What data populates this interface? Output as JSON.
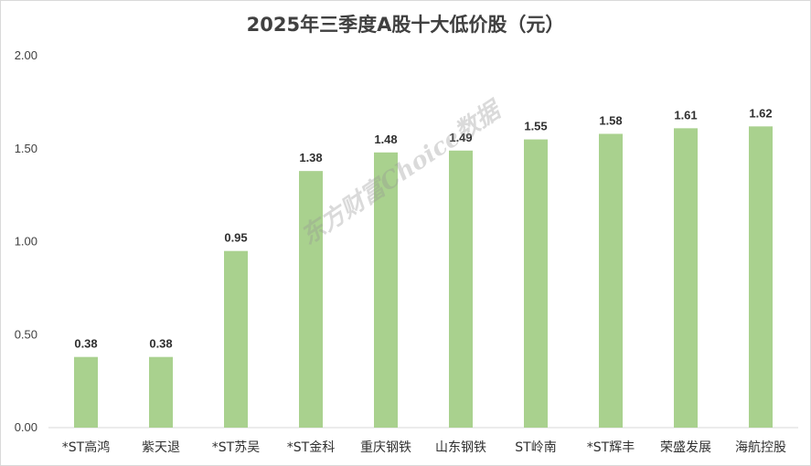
{
  "chart_data": {
    "type": "bar",
    "title": "2025年三季度A股十大低价股（元）",
    "categories": [
      "*ST高鸿",
      "紫天退",
      "*ST苏吴",
      "*ST金科",
      "重庆钢铁",
      "山东钢铁",
      "ST岭南",
      "*ST辉丰",
      "荣盛发展",
      "海航控股"
    ],
    "values": [
      0.38,
      0.38,
      0.95,
      1.38,
      1.48,
      1.49,
      1.55,
      1.58,
      1.61,
      1.62
    ],
    "data_labels": [
      "0.38",
      "0.38",
      "0.95",
      "1.38",
      "1.48",
      "1.49",
      "1.55",
      "1.58",
      "1.61",
      "1.62"
    ],
    "ylim": [
      0,
      2.0
    ],
    "yticks": [
      "0.00",
      "0.50",
      "1.00",
      "1.50",
      "2.00"
    ],
    "ytick_values": [
      0,
      0.5,
      1.0,
      1.5,
      2.0
    ],
    "xlabel": "",
    "ylabel": "",
    "grid": false,
    "legend": "none",
    "bar_color": "#a9d18e"
  },
  "watermark": "东方财富Choice数据"
}
